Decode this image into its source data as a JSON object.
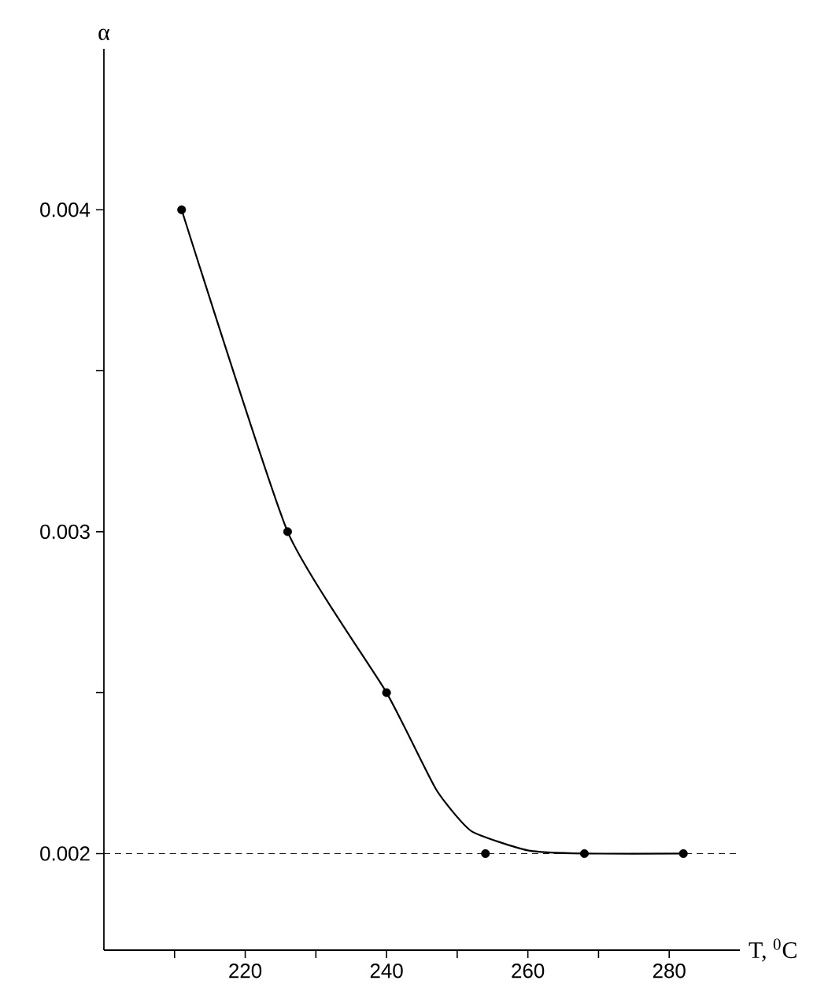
{
  "chart_data": {
    "type": "scatter",
    "xlabel": "T, $^{0}$C",
    "ylabel": "α",
    "xlim": [
      200,
      290
    ],
    "ylim": [
      0.0017,
      0.0045
    ],
    "xticks": [
      {
        "value": 210,
        "label": null
      },
      220,
      {
        "value": 230,
        "label": null
      },
      240,
      {
        "value": 250,
        "label": null
      },
      260,
      {
        "value": 270,
        "label": null
      },
      280
    ],
    "yticks": [
      0.002,
      {
        "value": 0.0025,
        "label": null
      },
      0.003,
      {
        "value": 0.0035,
        "label": null
      },
      0.004
    ],
    "grid": false,
    "series": [
      {
        "color": "#000000",
        "marker": "circle",
        "x": [
          211,
          226,
          240,
          254,
          268,
          282
        ],
        "values": [
          0.004,
          0.003,
          0.0025,
          0.002,
          0.002,
          0.002
        ]
      },
      {
        "type": "line",
        "color": "#000000",
        "line_style": "solid",
        "marker": "none",
        "x": [
          211,
          226,
          240,
          247,
          252,
          260,
          268,
          282
        ],
        "values": [
          0.004,
          0.003,
          0.0025,
          0.0022,
          0.00207,
          0.00201,
          0.002,
          0.002
        ]
      }
    ],
    "ref_lines": [
      {
        "axis": "y",
        "value": 0.002,
        "color": "#000000",
        "line_style": "dashed"
      }
    ]
  }
}
